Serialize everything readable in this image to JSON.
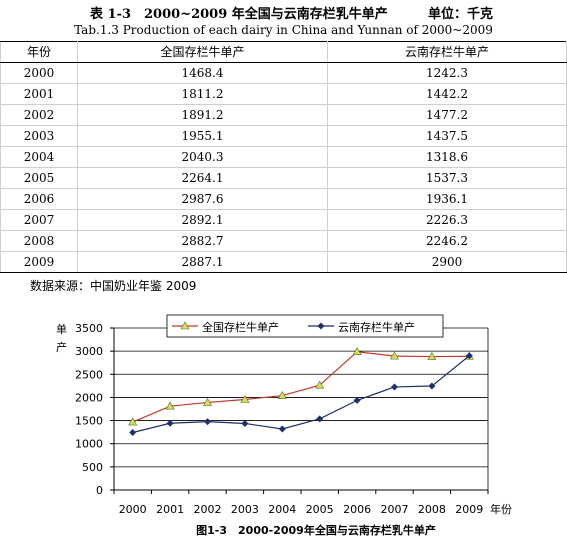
{
  "table": {
    "title": "表 1-3　2000~2009 年全国与云南存栏乳牛单产",
    "unit": "单位：千克",
    "subtitle": "Tab.1.3 Production of each dairy in China and Yunnan of 2000~2009",
    "headers": [
      "年份",
      "全国存栏牛单产",
      "云南存栏牛单产"
    ],
    "rows": [
      [
        "2000",
        "1468.4",
        "1242.3"
      ],
      [
        "2001",
        "1811.2",
        "1442.2"
      ],
      [
        "2002",
        "1891.2",
        "1477.2"
      ],
      [
        "2003",
        "1955.1",
        "1437.5"
      ],
      [
        "2004",
        "2040.3",
        "1318.6"
      ],
      [
        "2005",
        "2264.1",
        "1537.3"
      ],
      [
        "2006",
        "2987.6",
        "1936.1"
      ],
      [
        "2007",
        "2892.1",
        "2226.3"
      ],
      [
        "2008",
        "2882.7",
        "2246.2"
      ],
      [
        "2009",
        "2887.1",
        "2900"
      ]
    ],
    "source": "数据来源：中国奶业年鉴 2009"
  },
  "chart_data": {
    "type": "line",
    "caption": "图1-3　2000-2009年全国与云南存栏乳牛单产",
    "ylabel": "单产",
    "xlabel": "年份",
    "categories": [
      "2000",
      "2001",
      "2002",
      "2003",
      "2004",
      "2005",
      "2006",
      "2007",
      "2008",
      "2009"
    ],
    "ylim": [
      0,
      3500
    ],
    "yticks": [
      "0",
      "500",
      "1000",
      "1500",
      "2000",
      "2500",
      "3000",
      "3500"
    ],
    "grid": true,
    "legend_position": "top",
    "series": [
      {
        "name": "全国存栏牛单产",
        "color": "#c0392b",
        "marker": "triangle",
        "marker_color": "#d4e157",
        "values": [
          1468.4,
          1811.2,
          1891.2,
          1955.1,
          2040.3,
          2264.1,
          2987.6,
          2892.1,
          2882.7,
          2887.1
        ]
      },
      {
        "name": "云南存栏牛单产",
        "color": "#1f2f6b",
        "marker": "diamond",
        "marker_color": "#1f2f6b",
        "values": [
          1242.3,
          1442.2,
          1477.2,
          1437.5,
          1318.6,
          1537.3,
          1936.1,
          2226.3,
          2246.2,
          2900
        ]
      }
    ]
  }
}
